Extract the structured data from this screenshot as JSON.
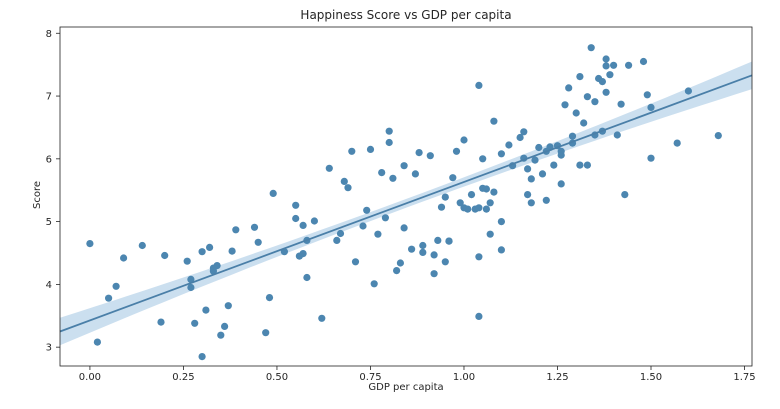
{
  "chart_data": {
    "type": "scatter",
    "title": "Happiness Score vs GDP per capita",
    "xlabel": "GDP per capita",
    "ylabel": "Score",
    "xlim": [
      -0.08,
      1.77
    ],
    "ylim": [
      2.7,
      8.1
    ],
    "xticks": [
      0.0,
      0.25,
      0.5,
      0.75,
      1.0,
      1.25,
      1.5,
      1.75
    ],
    "xtick_labels": [
      "0.00",
      "0.25",
      "0.50",
      "0.75",
      "1.00",
      "1.25",
      "1.50",
      "1.75"
    ],
    "yticks": [
      3,
      4,
      5,
      6,
      7,
      8
    ],
    "ytick_labels": [
      "3",
      "4",
      "5",
      "6",
      "7",
      "8"
    ],
    "grid": false,
    "colors": {
      "points": "#4c86b0",
      "regression_line": "#4a7fa8",
      "confidence_band": "#c2d9ec"
    },
    "regression": {
      "x": [
        -0.08,
        1.77
      ],
      "y": [
        3.25,
        7.33
      ],
      "ci_half_width_ends": 0.22,
      "ci_half_width_center": 0.07
    },
    "points": [
      [
        0.0,
        4.65
      ],
      [
        0.02,
        3.08
      ],
      [
        0.05,
        3.78
      ],
      [
        0.07,
        3.97
      ],
      [
        0.09,
        4.42
      ],
      [
        0.14,
        4.62
      ],
      [
        0.19,
        3.4
      ],
      [
        0.2,
        4.46
      ],
      [
        0.26,
        4.37
      ],
      [
        0.27,
        4.08
      ],
      [
        0.27,
        3.95
      ],
      [
        0.28,
        3.38
      ],
      [
        0.3,
        4.52
      ],
      [
        0.3,
        2.85
      ],
      [
        0.31,
        3.59
      ],
      [
        0.32,
        4.59
      ],
      [
        0.33,
        4.21
      ],
      [
        0.33,
        4.26
      ],
      [
        0.34,
        4.3
      ],
      [
        0.35,
        3.19
      ],
      [
        0.36,
        3.33
      ],
      [
        0.37,
        3.66
      ],
      [
        0.38,
        4.53
      ],
      [
        0.39,
        4.87
      ],
      [
        0.44,
        4.91
      ],
      [
        0.45,
        4.67
      ],
      [
        0.47,
        3.23
      ],
      [
        0.48,
        3.79
      ],
      [
        0.49,
        5.45
      ],
      [
        0.52,
        4.52
      ],
      [
        0.55,
        5.05
      ],
      [
        0.55,
        5.26
      ],
      [
        0.56,
        4.45
      ],
      [
        0.57,
        4.94
      ],
      [
        0.57,
        4.49
      ],
      [
        0.58,
        4.7
      ],
      [
        0.58,
        4.11
      ],
      [
        0.6,
        5.01
      ],
      [
        0.62,
        3.46
      ],
      [
        0.64,
        5.85
      ],
      [
        0.66,
        4.7
      ],
      [
        0.67,
        4.81
      ],
      [
        0.68,
        5.64
      ],
      [
        0.69,
        5.54
      ],
      [
        0.7,
        6.12
      ],
      [
        0.71,
        4.36
      ],
      [
        0.73,
        4.93
      ],
      [
        0.74,
        5.18
      ],
      [
        0.75,
        6.15
      ],
      [
        0.76,
        4.01
      ],
      [
        0.77,
        4.8
      ],
      [
        0.78,
        5.78
      ],
      [
        0.79,
        5.06
      ],
      [
        0.8,
        6.26
      ],
      [
        0.8,
        6.44
      ],
      [
        0.81,
        5.69
      ],
      [
        0.82,
        4.22
      ],
      [
        0.83,
        4.34
      ],
      [
        0.84,
        5.89
      ],
      [
        0.84,
        4.9
      ],
      [
        0.86,
        4.56
      ],
      [
        0.87,
        5.76
      ],
      [
        0.88,
        6.1
      ],
      [
        0.89,
        4.62
      ],
      [
        0.89,
        4.51
      ],
      [
        0.91,
        6.05
      ],
      [
        0.92,
        4.47
      ],
      [
        0.92,
        4.17
      ],
      [
        0.93,
        4.7
      ],
      [
        0.94,
        5.23
      ],
      [
        0.95,
        4.36
      ],
      [
        0.95,
        5.39
      ],
      [
        0.96,
        4.69
      ],
      [
        0.96,
        4.69
      ],
      [
        0.97,
        5.7
      ],
      [
        0.98,
        6.12
      ],
      [
        0.99,
        5.3
      ],
      [
        1.0,
        5.22
      ],
      [
        1.0,
        6.3
      ],
      [
        1.01,
        5.2
      ],
      [
        1.02,
        5.43
      ],
      [
        1.03,
        5.2
      ],
      [
        1.04,
        7.17
      ],
      [
        1.04,
        5.22
      ],
      [
        1.04,
        4.44
      ],
      [
        1.04,
        3.49
      ],
      [
        1.05,
        5.53
      ],
      [
        1.05,
        6.0
      ],
      [
        1.06,
        5.2
      ],
      [
        1.06,
        5.52
      ],
      [
        1.07,
        5.3
      ],
      [
        1.07,
        4.8
      ],
      [
        1.08,
        6.6
      ],
      [
        1.08,
        5.47
      ],
      [
        1.1,
        5.0
      ],
      [
        1.1,
        4.55
      ],
      [
        1.1,
        6.08
      ],
      [
        1.12,
        6.22
      ],
      [
        1.13,
        5.89
      ],
      [
        1.15,
        6.34
      ],
      [
        1.16,
        6.43
      ],
      [
        1.16,
        6.01
      ],
      [
        1.17,
        5.43
      ],
      [
        1.17,
        5.84
      ],
      [
        1.18,
        5.3
      ],
      [
        1.18,
        5.68
      ],
      [
        1.19,
        5.98
      ],
      [
        1.2,
        6.18
      ],
      [
        1.21,
        5.76
      ],
      [
        1.22,
        5.34
      ],
      [
        1.22,
        6.12
      ],
      [
        1.23,
        6.18
      ],
      [
        1.23,
        6.19
      ],
      [
        1.24,
        5.9
      ],
      [
        1.25,
        6.21
      ],
      [
        1.26,
        6.12
      ],
      [
        1.26,
        6.06
      ],
      [
        1.26,
        5.6
      ],
      [
        1.27,
        6.86
      ],
      [
        1.28,
        7.13
      ],
      [
        1.29,
        6.36
      ],
      [
        1.29,
        6.25
      ],
      [
        1.3,
        6.73
      ],
      [
        1.31,
        5.9
      ],
      [
        1.31,
        7.31
      ],
      [
        1.32,
        6.57
      ],
      [
        1.33,
        5.9
      ],
      [
        1.33,
        6.99
      ],
      [
        1.34,
        7.77
      ],
      [
        1.35,
        6.38
      ],
      [
        1.35,
        6.91
      ],
      [
        1.36,
        7.28
      ],
      [
        1.37,
        7.23
      ],
      [
        1.37,
        6.44
      ],
      [
        1.38,
        7.06
      ],
      [
        1.38,
        7.48
      ],
      [
        1.38,
        7.59
      ],
      [
        1.39,
        7.34
      ],
      [
        1.4,
        7.49
      ],
      [
        1.41,
        6.38
      ],
      [
        1.42,
        6.87
      ],
      [
        1.43,
        5.43
      ],
      [
        1.44,
        7.49
      ],
      [
        1.48,
        7.55
      ],
      [
        1.49,
        7.02
      ],
      [
        1.5,
        6.82
      ],
      [
        1.5,
        6.01
      ],
      [
        1.57,
        6.25
      ],
      [
        1.6,
        7.08
      ],
      [
        1.68,
        6.37
      ]
    ]
  }
}
